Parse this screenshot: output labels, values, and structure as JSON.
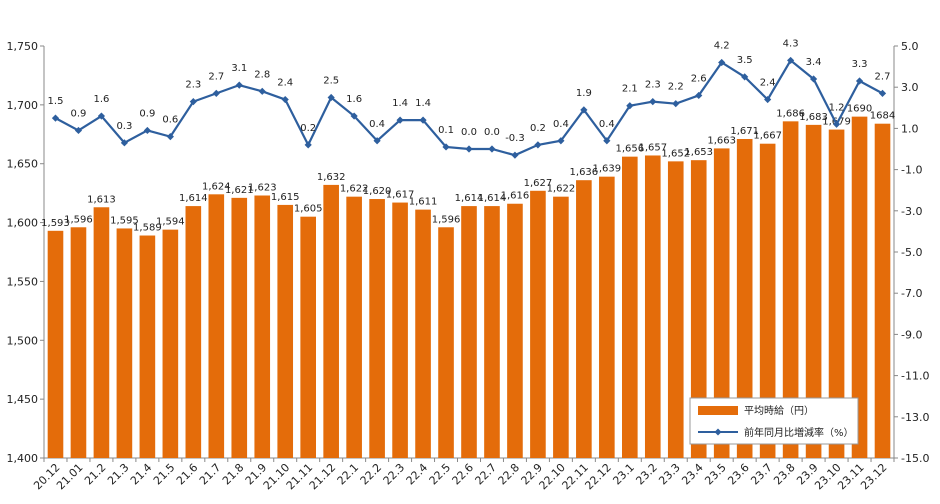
{
  "chart_data": {
    "type": "bar",
    "categories": [
      "20.12",
      "21.01",
      "21.2",
      "21.3",
      "21.4",
      "21.5",
      "21.6",
      "21.7",
      "21.8",
      "21.9",
      "21.10",
      "21.11",
      "21.12",
      "22.1",
      "22.2",
      "22.3",
      "22.4",
      "22.5",
      "22.6",
      "22.7",
      "22.8",
      "22.9",
      "22.10",
      "22.11",
      "22.12",
      "23.1",
      "23.2",
      "23.3",
      "23.4",
      "23.5",
      "23.6",
      "23.7",
      "23.8",
      "23.9",
      "23.10",
      "23.11",
      "23.12"
    ],
    "series": [
      {
        "name": "平均時給（円）",
        "kind": "bar",
        "axis": "left",
        "color": "#E46C0A",
        "values": [
          1593,
          1596,
          1613,
          1595,
          1589,
          1594,
          1614,
          1624,
          1621,
          1623,
          1615,
          1605,
          1632,
          1622,
          1620,
          1617,
          1611,
          1596,
          1614,
          1614,
          1616,
          1627,
          1622,
          1636,
          1639,
          1656,
          1657,
          1652,
          1653,
          1663,
          1671,
          1667,
          1686,
          1683,
          1679,
          1690,
          1684
        ],
        "labels": [
          "1,593",
          "1,596",
          "1,613",
          "1,595",
          "1,589",
          "1,594",
          "1,614",
          "1,624",
          "1,621",
          "1,623",
          "1,615",
          "1,605",
          "1,632",
          "1,622",
          "1,620",
          "1,617",
          "1,611",
          "1,596",
          "1,614",
          "1,614",
          "1,616",
          "1,627",
          "1,622",
          "1,636",
          "1,639",
          "1,656",
          "1,657",
          "1,652",
          "1,653",
          "1,663",
          "1,671",
          "1,667",
          "1,686",
          "1,683",
          "1,679",
          "1690",
          "1684"
        ]
      },
      {
        "name": "前年同月比増減率（%）",
        "kind": "line",
        "axis": "right",
        "color": "#2E5F9E",
        "values": [
          1.5,
          0.9,
          1.6,
          0.3,
          0.9,
          0.6,
          2.3,
          2.7,
          3.1,
          2.8,
          2.4,
          0.2,
          2.5,
          1.6,
          0.4,
          1.4,
          1.4,
          0.1,
          0.0,
          0.0,
          -0.3,
          0.2,
          0.4,
          1.9,
          0.4,
          2.1,
          2.3,
          2.2,
          2.6,
          4.2,
          3.5,
          2.4,
          4.3,
          3.4,
          1.2,
          3.3,
          2.7
        ],
        "labels": [
          "1.5",
          "0.9",
          "1.6",
          "0.3",
          "0.9",
          "0.6",
          "2.3",
          "2.7",
          "3.1",
          "2.8",
          "2.4",
          "0.2",
          "2.5",
          "1.6",
          "0.4",
          "1.4",
          "1.4",
          "0.1",
          "0.0",
          "0.0",
          "-0.3",
          "0.2",
          "0.4",
          "1.9",
          "0.4",
          "2.1",
          "2.3",
          "2.2",
          "2.6",
          "4.2",
          "3.5",
          "2.4",
          "4.3",
          "3.4",
          "1.2",
          "3.3",
          "2.7"
        ],
        "negative_label_color": "#FF0000"
      }
    ],
    "y_left": {
      "ylim": [
        1400,
        1750
      ],
      "ticks": [
        1400,
        1450,
        1500,
        1550,
        1600,
        1650,
        1700,
        1750
      ],
      "tick_labels": [
        "1,400",
        "1,450",
        "1,500",
        "1,550",
        "1,600",
        "1,650",
        "1,700",
        "1,750"
      ]
    },
    "y_right": {
      "ylim": [
        -15,
        5
      ],
      "ticks": [
        -15,
        -13,
        -11,
        -9,
        -7,
        -5,
        -3,
        -1,
        1,
        3,
        5
      ],
      "tick_labels": [
        "-15.0",
        "-13.0",
        "-11.0",
        "-9.0",
        "-7.0",
        "-5.0",
        "-3.0",
        "-1.0",
        "1.0",
        "3.0",
        "5.0"
      ]
    },
    "grid": false,
    "legend_position": "bottom-right",
    "title": "",
    "xlabel": "",
    "ylabel": ""
  }
}
